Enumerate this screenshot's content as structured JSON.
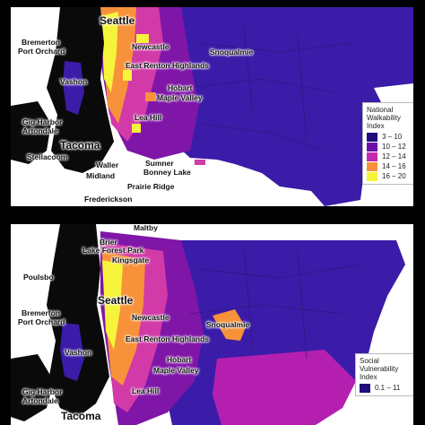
{
  "maps": [
    {
      "id": "walkability",
      "places": {
        "seattle": "Seattle",
        "bremerton": "Bremerton",
        "port_orchard": "Port Orchard",
        "newcastle": "Newcastle",
        "snoqualmie": "Snoqualmie",
        "east_renton": "East Renton Highlands",
        "vashon": "Vashon",
        "hobart": "Hobart",
        "maple_valley": "Maple Valley",
        "lea_hill": "Lea Hill",
        "gig_harbor": "Gig Harbor",
        "artondale": "Artondale",
        "tacoma": "Tacoma",
        "steilacoom": "Steilacoom",
        "waller": "Waller",
        "sumner": "Sumner",
        "bonney_lake": "Bonney Lake",
        "midland": "Midland",
        "prairie_ridge": "Prairie Ridge",
        "frederickson": "Frederickson"
      },
      "legend": {
        "title_line1": "National",
        "title_line2": "Walkability",
        "title_line3": "Index",
        "items": [
          {
            "label": "3 – 10",
            "color": "#1f0f7a"
          },
          {
            "label": "10 – 12",
            "color": "#6a10a8"
          },
          {
            "label": "12 – 14",
            "color": "#c42ab0"
          },
          {
            "label": "14 – 16",
            "color": "#f7923a"
          },
          {
            "label": "16 – 20",
            "color": "#f6f43a"
          }
        ]
      }
    },
    {
      "id": "social_vulnerability",
      "places": {
        "poulsbo": "Poulsbo",
        "maltby": "Maltby",
        "brier": "Brier",
        "lake_forest_park": "Lake Forest Park",
        "kingsgate": "Kingsgate",
        "seattle": "Seattle",
        "bremerton": "Bremerton",
        "port_orchard": "Port Orchard",
        "newcastle": "Newcastle",
        "snoqualmie": "Snoqualmie",
        "east_renton": "East Renton Highlands",
        "vashon": "Vashon",
        "hobart": "Hobart",
        "maple_valley": "Maple Valley",
        "lea_hill": "Lea Hill",
        "gig_harbor": "Gig Harbor",
        "artondale": "Artondale",
        "tacoma": "Tacoma"
      },
      "legend": {
        "title_line1": "Social",
        "title_line2": "Vulnerability",
        "title_line3": "Index",
        "items": [
          {
            "label": "0.1 – 11",
            "color": "#1f0f7a"
          }
        ]
      }
    }
  ],
  "colors": {
    "water": "#ffffff",
    "land_west": "#0a0a0a",
    "low": "#3b1ca8",
    "mid": "#7f16a8",
    "high": "#d23aa8",
    "higher": "#f7923a",
    "highest": "#f6f43a"
  }
}
